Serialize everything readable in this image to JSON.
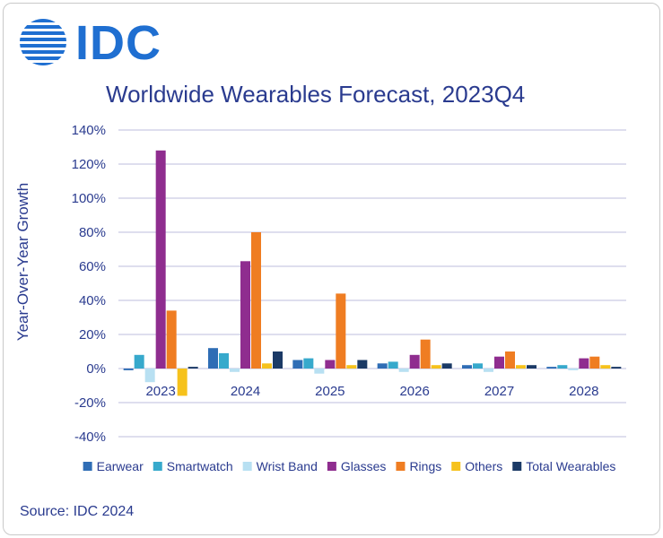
{
  "logo": {
    "text": "IDC",
    "color": "#1f6fd1",
    "icon": "globe-stripes-icon"
  },
  "source": "Source: IDC 2024",
  "chart_data": {
    "type": "bar",
    "title": "Worldwide Wearables Forecast, 2023Q4",
    "xlabel": "",
    "ylabel": "Year-Over-Year Growth",
    "ylim": [
      -40,
      140
    ],
    "ytick_values": [
      -40,
      -20,
      0,
      20,
      40,
      60,
      80,
      100,
      120,
      140
    ],
    "ytick_labels": [
      "-40%",
      "-20%",
      "0%",
      "20%",
      "40%",
      "60%",
      "80%",
      "100%",
      "120%",
      "140%"
    ],
    "grid": true,
    "legend_position": "bottom",
    "categories": [
      "2023",
      "2024",
      "2025",
      "2026",
      "2027",
      "2028"
    ],
    "series": [
      {
        "name": "Earwear",
        "color": "#2f6db5",
        "values": [
          -1,
          12,
          5,
          3,
          2,
          1
        ]
      },
      {
        "name": "Smartwatch",
        "color": "#37a9cc",
        "values": [
          8,
          9,
          6,
          4,
          3,
          2
        ]
      },
      {
        "name": "Wrist Band",
        "color": "#b8e0f2",
        "values": [
          -8,
          -2,
          -3,
          -2,
          -2,
          -1
        ]
      },
      {
        "name": "Glasses",
        "color": "#8f2d8f",
        "values": [
          128,
          63,
          5,
          8,
          7,
          6
        ]
      },
      {
        "name": "Rings",
        "color": "#ef7d22",
        "values": [
          34,
          80,
          44,
          17,
          10,
          7
        ]
      },
      {
        "name": "Others",
        "color": "#f6c21c",
        "values": [
          -16,
          3,
          2,
          2,
          2,
          2
        ]
      },
      {
        "name": "Total Wearables",
        "color": "#1b3a66",
        "values": [
          1,
          10,
          5,
          3,
          2,
          1
        ]
      }
    ]
  }
}
